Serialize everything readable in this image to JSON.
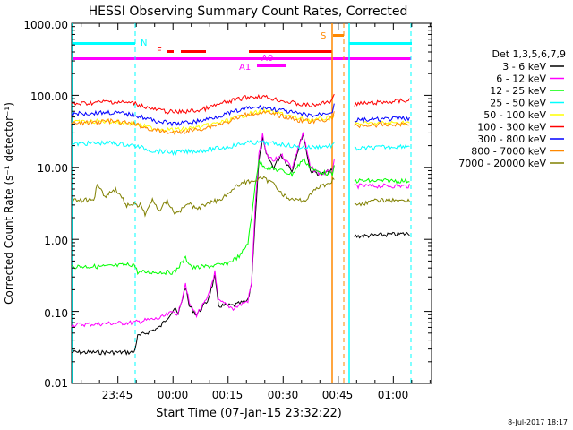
{
  "chart_data": {
    "type": "line",
    "title": "HESSI Observing Summary Count Rates, Corrected",
    "xlabel": "Start Time (07-Jan-15 23:32:22)",
    "ylabel": "Corrected Count Rate (s⁻¹ detector⁻¹)",
    "yscale": "log",
    "xlim_minutes_from_start": [
      0,
      98
    ],
    "ylim": [
      0.01,
      1000
    ],
    "x_tick_labels": [
      {
        "label": "23:45",
        "minute": 12.6
      },
      {
        "label": "00:00",
        "minute": 27.6
      },
      {
        "label": "00:15",
        "minute": 42.6
      },
      {
        "label": "00:30",
        "minute": 57.6
      },
      {
        "label": "00:45",
        "minute": 72.6
      },
      {
        "label": "01:00",
        "minute": 87.6
      }
    ],
    "y_tick_labels": [
      "0.01",
      "0.10",
      "1.00",
      "10.00",
      "100.00",
      "1000.00"
    ],
    "legend_title": "Det 1,3,5,6,7,9",
    "legend_position": "right",
    "footer_date": "8-Jul-2017 18:17",
    "flag_labels": [
      "N",
      "F",
      "A0",
      "A1",
      "S"
    ],
    "series": [
      {
        "name": "3 - 6 keV",
        "color": "#000000",
        "points": [
          [
            0,
            0.027
          ],
          [
            17,
            0.027
          ],
          [
            18,
            0.045
          ],
          [
            24,
            0.06
          ],
          [
            28,
            0.11
          ],
          [
            29,
            0.09
          ],
          [
            31,
            0.22
          ],
          [
            32,
            0.12
          ],
          [
            34,
            0.09
          ],
          [
            37,
            0.14
          ],
          [
            39,
            0.3
          ],
          [
            40,
            0.12
          ],
          [
            44,
            0.12
          ],
          [
            48,
            0.14
          ],
          [
            49,
            0.25
          ],
          [
            50,
            2
          ],
          [
            51,
            12
          ],
          [
            52,
            25
          ],
          [
            53,
            15
          ],
          [
            55,
            10
          ],
          [
            57,
            15
          ],
          [
            60,
            9
          ],
          [
            63,
            30
          ],
          [
            65,
            9
          ],
          [
            68,
            8
          ],
          [
            71,
            9
          ],
          [
            71.5,
            10
          ]
        ],
        "gap_after": 71.5,
        "points2": [
          [
            77,
            1.1
          ],
          [
            92,
            1.2
          ]
        ]
      },
      {
        "name": "6 - 12 keV",
        "color": "#ff00ff",
        "points": [
          [
            0,
            0.065
          ],
          [
            17,
            0.07
          ],
          [
            20,
            0.075
          ],
          [
            24,
            0.08
          ],
          [
            28,
            0.1
          ],
          [
            29,
            0.09
          ],
          [
            31,
            0.25
          ],
          [
            32,
            0.13
          ],
          [
            34,
            0.09
          ],
          [
            37,
            0.15
          ],
          [
            39,
            0.35
          ],
          [
            40,
            0.14
          ],
          [
            44,
            0.11
          ],
          [
            48,
            0.14
          ],
          [
            49,
            0.25
          ],
          [
            50,
            3
          ],
          [
            51,
            15
          ],
          [
            52,
            28
          ],
          [
            53,
            15
          ],
          [
            55,
            12
          ],
          [
            57,
            15
          ],
          [
            60,
            10
          ],
          [
            63,
            30
          ],
          [
            65,
            10
          ],
          [
            68,
            8
          ],
          [
            71,
            9
          ],
          [
            71.5,
            12
          ]
        ],
        "gap_after": 71.5,
        "points2": [
          [
            77,
            5.5
          ],
          [
            92,
            5.5
          ]
        ]
      },
      {
        "name": "12 - 25 keV",
        "color": "#00ff00",
        "points": [
          [
            0,
            0.42
          ],
          [
            10,
            0.42
          ],
          [
            17,
            0.45
          ],
          [
            18,
            0.35
          ],
          [
            28,
            0.35
          ],
          [
            31,
            0.55
          ],
          [
            33,
            0.4
          ],
          [
            42,
            0.45
          ],
          [
            46,
            0.6
          ],
          [
            48,
            0.9
          ],
          [
            49,
            2
          ],
          [
            50,
            6
          ],
          [
            51,
            12
          ],
          [
            53,
            10
          ],
          [
            57,
            9
          ],
          [
            60,
            8
          ],
          [
            63,
            13
          ],
          [
            66,
            9
          ],
          [
            71,
            8
          ],
          [
            71.5,
            10
          ]
        ],
        "gap_after": 71.5,
        "points2": [
          [
            77,
            6.5
          ],
          [
            92,
            6.5
          ]
        ]
      },
      {
        "name": "25 - 50 keV",
        "color": "#00ffff",
        "points": [
          [
            0,
            21
          ],
          [
            10,
            22
          ],
          [
            17,
            20
          ],
          [
            22,
            17
          ],
          [
            28,
            16
          ],
          [
            35,
            17
          ],
          [
            42,
            19
          ],
          [
            48,
            22
          ],
          [
            52,
            22
          ],
          [
            57,
            21
          ],
          [
            62,
            19
          ],
          [
            66,
            19
          ],
          [
            71,
            20
          ],
          [
            71.5,
            22
          ]
        ],
        "gap_after": 71.5,
        "points2": [
          [
            77,
            18
          ],
          [
            92,
            20
          ]
        ]
      },
      {
        "name": "50 - 100 keV",
        "color": "#ffff00",
        "points": [
          [
            0,
            42
          ],
          [
            10,
            44
          ],
          [
            17,
            40
          ],
          [
            22,
            35
          ],
          [
            28,
            33
          ],
          [
            35,
            36
          ],
          [
            42,
            44
          ],
          [
            48,
            55
          ],
          [
            52,
            60
          ],
          [
            57,
            56
          ],
          [
            62,
            47
          ],
          [
            66,
            45
          ],
          [
            71,
            50
          ],
          [
            71.5,
            52
          ]
        ],
        "gap_after": 71.5,
        "points2": [
          [
            77,
            40
          ],
          [
            92,
            42
          ]
        ]
      },
      {
        "name": "100 - 300 keV",
        "color": "#ff0000",
        "points": [
          [
            0,
            75
          ],
          [
            10,
            82
          ],
          [
            17,
            78
          ],
          [
            22,
            64
          ],
          [
            28,
            58
          ],
          [
            35,
            62
          ],
          [
            42,
            80
          ],
          [
            48,
            95
          ],
          [
            52,
            96
          ],
          [
            57,
            85
          ],
          [
            62,
            75
          ],
          [
            66,
            72
          ],
          [
            71,
            85
          ],
          [
            71.5,
            110
          ]
        ],
        "gap_after": 71.5,
        "points2": [
          [
            77,
            75
          ],
          [
            92,
            85
          ]
        ]
      },
      {
        "name": "300 - 800 keV",
        "color": "#0000ff",
        "points": [
          [
            0,
            55
          ],
          [
            10,
            58
          ],
          [
            17,
            54
          ],
          [
            22,
            45
          ],
          [
            28,
            40
          ],
          [
            35,
            44
          ],
          [
            42,
            55
          ],
          [
            48,
            66
          ],
          [
            52,
            68
          ],
          [
            57,
            62
          ],
          [
            62,
            55
          ],
          [
            66,
            52
          ],
          [
            71,
            60
          ],
          [
            71.5,
            75
          ]
        ],
        "gap_after": 71.5,
        "points2": [
          [
            77,
            45
          ],
          [
            92,
            48
          ]
        ]
      },
      {
        "name": "800 - 7000 keV",
        "color": "#ff8800",
        "points": [
          [
            0,
            40
          ],
          [
            10,
            44
          ],
          [
            17,
            40
          ],
          [
            22,
            33
          ],
          [
            28,
            30
          ],
          [
            35,
            34
          ],
          [
            42,
            42
          ],
          [
            48,
            55
          ],
          [
            52,
            58
          ],
          [
            57,
            52
          ],
          [
            62,
            45
          ],
          [
            66,
            43
          ],
          [
            71,
            48
          ],
          [
            71.5,
            60
          ]
        ],
        "gap_after": 71.5,
        "points2": [
          [
            77,
            38
          ],
          [
            92,
            40
          ]
        ]
      },
      {
        "name": "7000 - 20000 keV",
        "color": "#808000",
        "points": [
          [
            0,
            3.5
          ],
          [
            6,
            3.5
          ],
          [
            7,
            6
          ],
          [
            9,
            4
          ],
          [
            12,
            5
          ],
          [
            15,
            3
          ],
          [
            17,
            3
          ],
          [
            19,
            3
          ],
          [
            20,
            2.2
          ],
          [
            22,
            3.5
          ],
          [
            24,
            2.5
          ],
          [
            26,
            3.5
          ],
          [
            28,
            2.3
          ],
          [
            30,
            2.6
          ],
          [
            32,
            3.2
          ],
          [
            34,
            2.6
          ],
          [
            37,
            3.2
          ],
          [
            40,
            3.5
          ],
          [
            43,
            4.5
          ],
          [
            46,
            6
          ],
          [
            52,
            7
          ],
          [
            55,
            6
          ],
          [
            58,
            4
          ],
          [
            60,
            3.5
          ],
          [
            64,
            3.5
          ],
          [
            66,
            5
          ],
          [
            70,
            6
          ],
          [
            71.5,
            7
          ]
        ],
        "gap_after": 71.5,
        "points2": [
          [
            77,
            3
          ],
          [
            84,
            3.5
          ],
          [
            92,
            3.5
          ]
        ]
      }
    ]
  }
}
